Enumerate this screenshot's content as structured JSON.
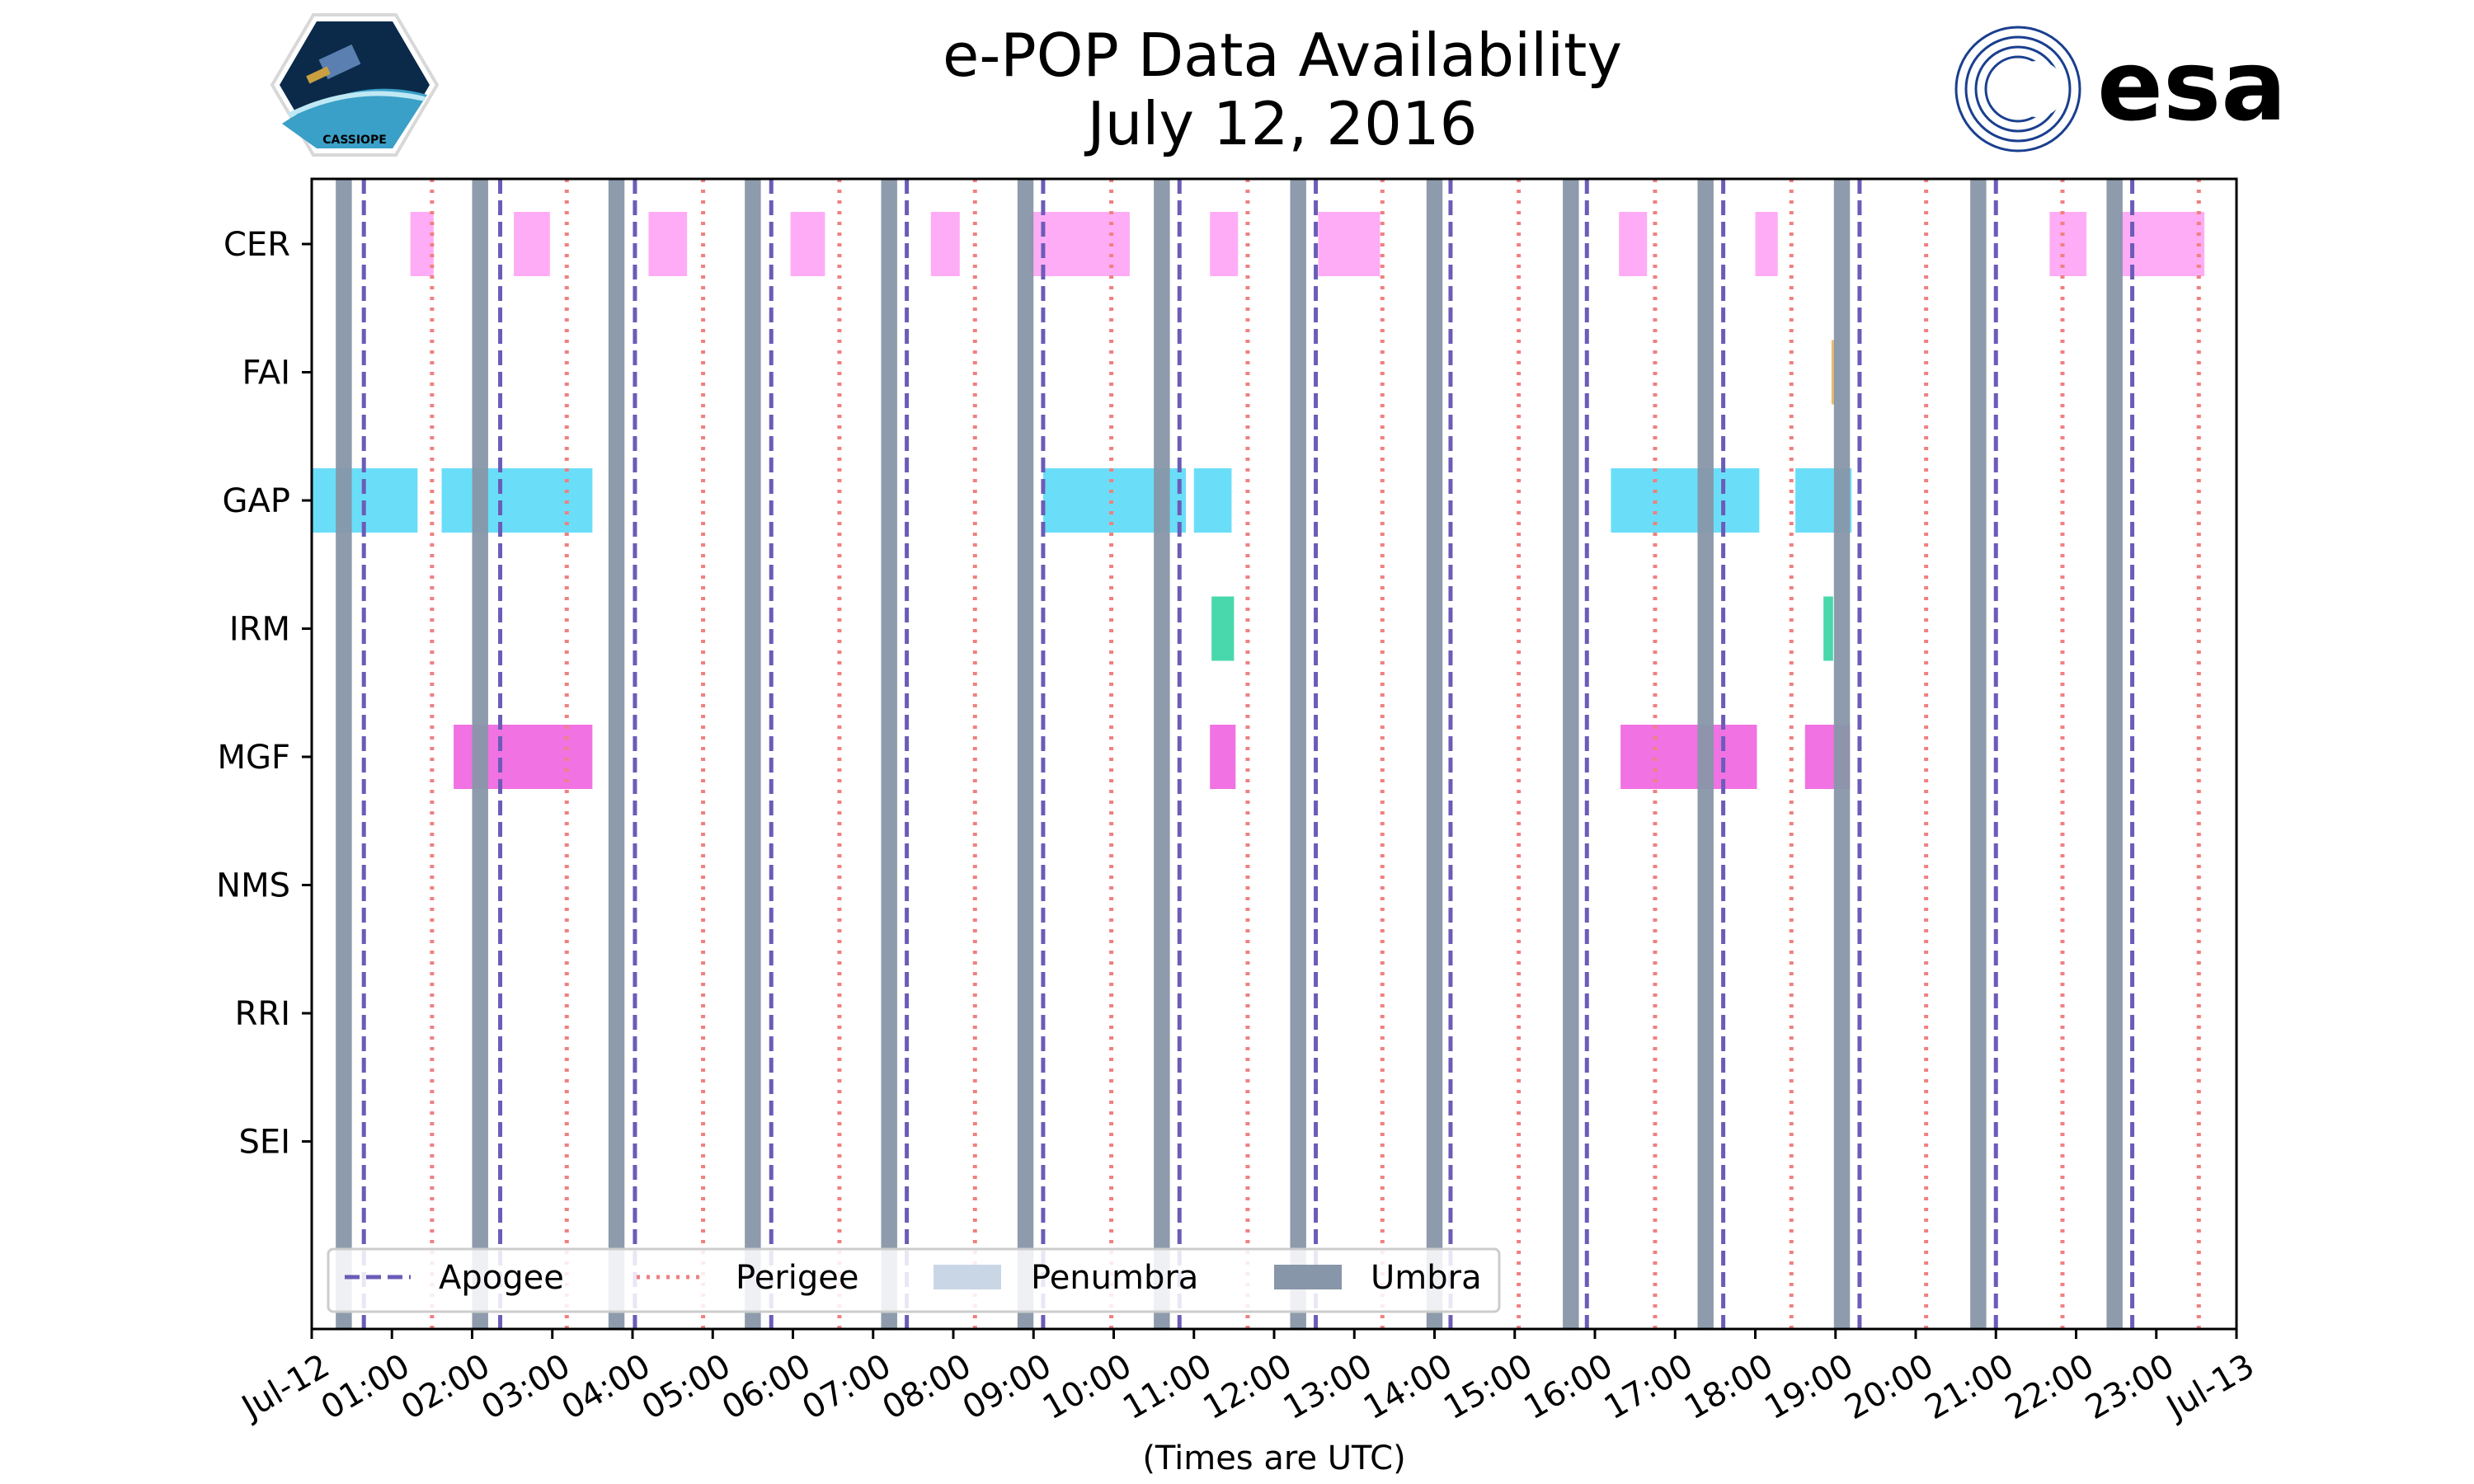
{
  "chart_data": {
    "type": "timeline",
    "title": [
      "e-POP Data Availability",
      "July 12, 2016"
    ],
    "xlabel": "(Times are UTC)",
    "ylabel": "",
    "xlim": [
      0,
      24
    ],
    "x_unit": "hours UTC",
    "grid": false,
    "x_ticks": [
      {
        "hour": 0,
        "label": "Jul-12"
      },
      {
        "hour": 1,
        "label": "01:00"
      },
      {
        "hour": 2,
        "label": "02:00"
      },
      {
        "hour": 3,
        "label": "03:00"
      },
      {
        "hour": 4,
        "label": "04:00"
      },
      {
        "hour": 5,
        "label": "05:00"
      },
      {
        "hour": 6,
        "label": "06:00"
      },
      {
        "hour": 7,
        "label": "07:00"
      },
      {
        "hour": 8,
        "label": "08:00"
      },
      {
        "hour": 9,
        "label": "09:00"
      },
      {
        "hour": 10,
        "label": "10:00"
      },
      {
        "hour": 11,
        "label": "11:00"
      },
      {
        "hour": 12,
        "label": "12:00"
      },
      {
        "hour": 13,
        "label": "13:00"
      },
      {
        "hour": 14,
        "label": "14:00"
      },
      {
        "hour": 15,
        "label": "15:00"
      },
      {
        "hour": 16,
        "label": "16:00"
      },
      {
        "hour": 17,
        "label": "17:00"
      },
      {
        "hour": 18,
        "label": "18:00"
      },
      {
        "hour": 19,
        "label": "19:00"
      },
      {
        "hour": 20,
        "label": "20:00"
      },
      {
        "hour": 21,
        "label": "21:00"
      },
      {
        "hour": 22,
        "label": "22:00"
      },
      {
        "hour": 23,
        "label": "23:00"
      },
      {
        "hour": 24,
        "label": "Jul-13"
      }
    ],
    "instruments": [
      {
        "name": "CER",
        "color": "#ffa8f5",
        "intervals": [
          [
            1.23,
            1.52
          ],
          [
            2.52,
            2.97
          ],
          [
            4.2,
            4.68
          ],
          [
            5.97,
            6.4
          ],
          [
            7.72,
            8.08
          ],
          [
            8.97,
            10.2
          ],
          [
            11.2,
            11.55
          ],
          [
            12.55,
            13.32
          ],
          [
            16.3,
            16.65
          ],
          [
            18.0,
            18.28
          ],
          [
            21.67,
            22.13
          ],
          [
            22.55,
            23.6
          ]
        ]
      },
      {
        "name": "FAI",
        "color": "#e8b86a",
        "intervals": [
          [
            18.95,
            18.99
          ]
        ]
      },
      {
        "name": "GAP",
        "color": "#62dcf8",
        "intervals": [
          [
            0.0,
            1.32
          ],
          [
            1.62,
            3.5
          ],
          [
            9.12,
            10.9
          ],
          [
            11.0,
            11.47
          ],
          [
            16.2,
            18.05
          ],
          [
            18.5,
            19.2
          ]
        ]
      },
      {
        "name": "IRM",
        "color": "#3ed6a8",
        "intervals": [
          [
            11.22,
            11.5
          ],
          [
            18.85,
            18.97
          ]
        ]
      },
      {
        "name": "MGF",
        "color": "#f06ae0",
        "intervals": [
          [
            1.77,
            3.5
          ],
          [
            11.2,
            11.52
          ],
          [
            16.32,
            18.02
          ],
          [
            18.62,
            19.18
          ]
        ]
      },
      {
        "name": "NMS",
        "color": "#cccccc",
        "intervals": []
      },
      {
        "name": "RRI",
        "color": "#cccccc",
        "intervals": []
      },
      {
        "name": "SEI",
        "color": "#cccccc",
        "intervals": []
      }
    ],
    "umbra": {
      "color": "#8796a8",
      "intervals": [
        [
          0.3,
          0.5
        ],
        [
          2.0,
          2.2
        ],
        [
          3.7,
          3.9
        ],
        [
          5.4,
          5.6
        ],
        [
          7.1,
          7.3
        ],
        [
          8.8,
          9.0
        ],
        [
          10.5,
          10.7
        ],
        [
          12.2,
          12.4
        ],
        [
          13.9,
          14.1
        ],
        [
          15.6,
          15.8
        ],
        [
          17.28,
          17.48
        ],
        [
          18.98,
          19.18
        ],
        [
          20.68,
          20.88
        ],
        [
          22.38,
          22.58
        ]
      ]
    },
    "penumbra": {
      "color": "#c9d6e6",
      "intervals": []
    },
    "apogee": {
      "color": "#6b5cb8",
      "hours": [
        0.65,
        2.35,
        4.03,
        5.73,
        7.42,
        9.12,
        10.82,
        12.52,
        14.2,
        15.9,
        17.6,
        19.3,
        21.0,
        22.7
      ]
    },
    "perigee": {
      "color": "#f08080",
      "hours": [
        1.5,
        3.18,
        4.88,
        6.58,
        8.27,
        9.97,
        11.67,
        13.35,
        15.05,
        16.75,
        18.45,
        20.13,
        21.83,
        23.53
      ]
    },
    "legend": {
      "position": "lower-left",
      "entries": [
        {
          "label": "Apogee",
          "style": "dashed"
        },
        {
          "label": "Perigee",
          "style": "dotted"
        },
        {
          "label": "Penumbra",
          "style": "patch-light"
        },
        {
          "label": "Umbra",
          "style": "patch-dark"
        }
      ]
    }
  },
  "logos": {
    "left": {
      "text": "CASSIOPE",
      "accent": "#2a9ab0"
    },
    "right": {
      "text": "esa",
      "accent": "#1a3f8f"
    }
  }
}
